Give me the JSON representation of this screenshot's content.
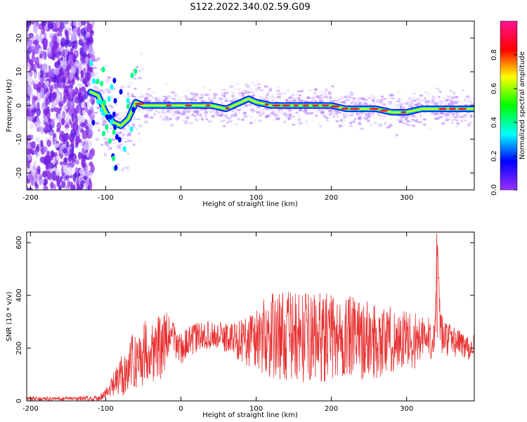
{
  "figure_title": "S122.2022.340.02.59.G09",
  "chart_data": [
    {
      "type": "heatmap",
      "title": "",
      "xlabel": "Height of straight line (km)",
      "ylabel": "Frequency (Hz)",
      "xlim": [
        -205,
        390
      ],
      "ylim": [
        -25,
        25
      ],
      "xticks": [
        -200,
        -100,
        0,
        100,
        200,
        300
      ],
      "yticks": [
        -20,
        -10,
        0,
        10,
        20
      ],
      "colorbar": {
        "label": "Normalized spectral amplitude",
        "range": [
          0,
          1
        ],
        "ticks": [
          "0.0",
          "0.2",
          "0.4",
          "0.6",
          "0.8"
        ],
        "colormap": "rainbow",
        "colors": [
          "#9b30ff",
          "#0000ff",
          "#00ffff",
          "#00ff00",
          "#ffff00",
          "#ff0000",
          "#ff1493"
        ]
      },
      "ridge": {
        "height_km": [
          -120,
          -110,
          -100,
          -90,
          -80,
          -70,
          -60,
          -50,
          -40,
          -20,
          0,
          20,
          40,
          60,
          80,
          90,
          100,
          120,
          140,
          160,
          180,
          200,
          220,
          240,
          260,
          280,
          300,
          320,
          340,
          360,
          390
        ],
        "freq_hz": [
          4,
          3,
          -2,
          -5,
          -6,
          -4,
          1,
          0,
          0,
          0,
          0,
          0,
          0,
          -1,
          1,
          2,
          1,
          0,
          0,
          0,
          0,
          0,
          -1,
          -1,
          -1,
          -2,
          -2,
          -1,
          -1,
          -1,
          -1
        ]
      }
    },
    {
      "type": "line",
      "title": "",
      "xlabel": "Height of straight line (km)",
      "ylabel": "SNR (10 * v/v)",
      "xlim": [
        -205,
        390
      ],
      "ylim": [
        0,
        640
      ],
      "xticks": [
        -200,
        -100,
        0,
        100,
        200,
        300
      ],
      "yticks": [
        0,
        200,
        400,
        600
      ],
      "color": "#e83030",
      "envelope": {
        "height_km": [
          -205,
          -150,
          -110,
          -95,
          -80,
          -65,
          -55,
          -45,
          -35,
          -25,
          -15,
          0,
          20,
          40,
          60,
          80,
          100,
          130,
          160,
          190,
          220,
          250,
          280,
          310,
          330,
          338,
          341,
          345,
          360,
          390
        ],
        "snr_mean": [
          8,
          8,
          10,
          40,
          90,
          150,
          160,
          200,
          190,
          210,
          250,
          200,
          240,
          250,
          240,
          230,
          240,
          250,
          240,
          240,
          240,
          230,
          230,
          230,
          230,
          260,
          600,
          250,
          230,
          200
        ],
        "snr_spread": [
          8,
          8,
          10,
          30,
          80,
          100,
          120,
          120,
          120,
          130,
          80,
          60,
          60,
          50,
          60,
          80,
          140,
          170,
          170,
          170,
          160,
          150,
          130,
          110,
          100,
          60,
          10,
          80,
          60,
          50
        ]
      },
      "peak": {
        "height_km": 340,
        "snr": 635
      }
    }
  ]
}
